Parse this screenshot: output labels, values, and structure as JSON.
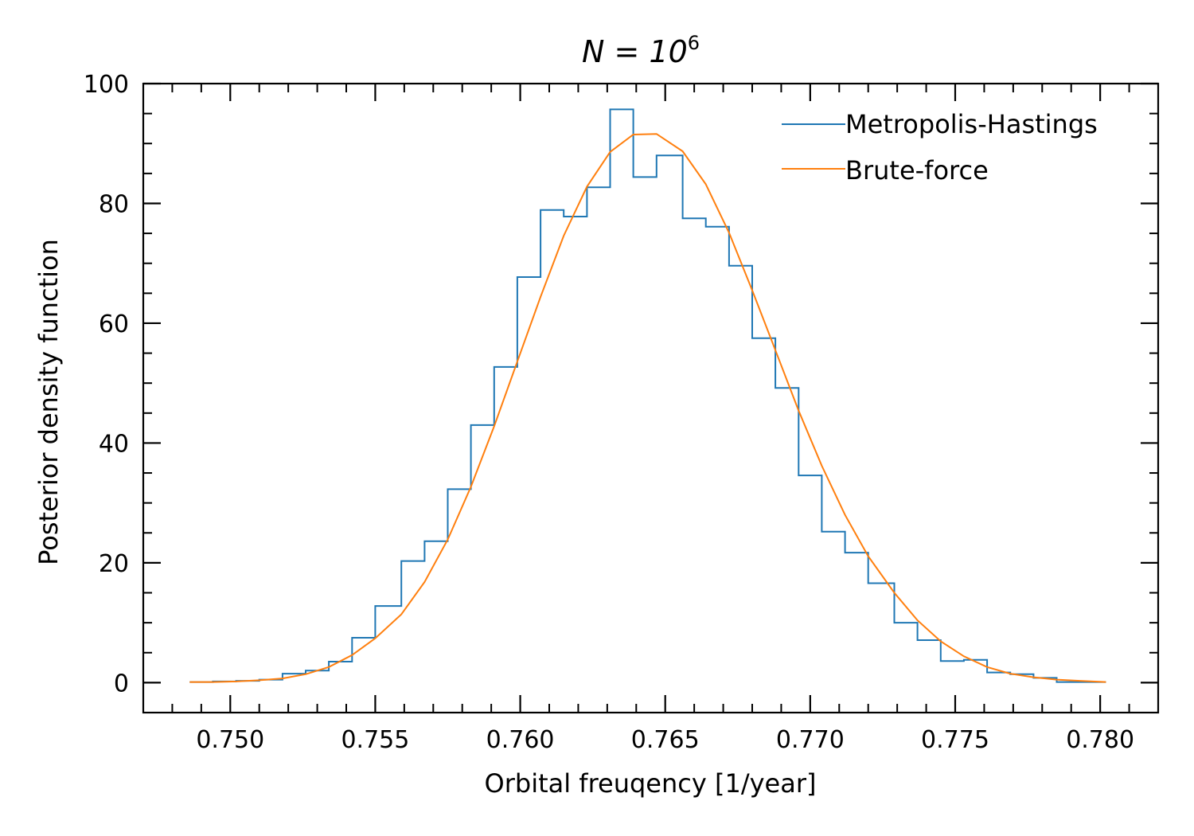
{
  "chart_data": {
    "type": "line",
    "title": "N = 10",
    "title_superscript": "6",
    "xlabel": "Orbital freuqency [1/year]",
    "ylabel": "Posterior density function",
    "xlim": [
      0.747,
      0.782
    ],
    "ylim": [
      -5,
      100
    ],
    "xticks": [
      0.75,
      0.755,
      0.76,
      0.765,
      0.77,
      0.775,
      0.78
    ],
    "xtick_labels": [
      "0.750",
      "0.755",
      "0.760",
      "0.765",
      "0.770",
      "0.775",
      "0.780"
    ],
    "yticks": [
      0,
      20,
      40,
      60,
      80,
      100
    ],
    "ytick_labels": [
      "0",
      "20",
      "40",
      "60",
      "80",
      "100"
    ],
    "grid": false,
    "legend_position": "top-right",
    "series": [
      {
        "name": "Metropolis-Hastings",
        "kind": "histogram-step",
        "color": "#1f77b4",
        "bin_edges": [
          0.7486,
          0.7494,
          0.7502,
          0.751,
          0.7518,
          0.7526,
          0.7534,
          0.7542,
          0.755,
          0.7559,
          0.7567,
          0.7575,
          0.7583,
          0.7591,
          0.7599,
          0.7607,
          0.7615,
          0.7623,
          0.7631,
          0.7639,
          0.7647,
          0.7656,
          0.7664,
          0.7672,
          0.768,
          0.7688,
          0.7696,
          0.7704,
          0.7712,
          0.772,
          0.7729,
          0.7737,
          0.7745,
          0.7753,
          0.7761,
          0.7769,
          0.7777,
          0.7785,
          0.7793,
          0.7802
        ],
        "values": [
          0.1,
          0.2,
          0.3,
          0.5,
          1.5,
          2.0,
          3.5,
          7.5,
          12.8,
          20.3,
          23.6,
          32.3,
          43.0,
          52.7,
          67.7,
          78.9,
          77.8,
          82.7,
          95.7,
          84.4,
          88.0,
          77.5,
          76.1,
          69.6,
          57.5,
          49.2,
          34.6,
          25.2,
          21.7,
          16.6,
          10.0,
          7.1,
          3.6,
          3.8,
          1.7,
          1.4,
          0.8,
          0.1,
          0.1
        ]
      },
      {
        "name": "Brute-force",
        "kind": "line",
        "color": "#ff7f0e",
        "x": [
          0.7486,
          0.7494,
          0.7502,
          0.751,
          0.7518,
          0.7526,
          0.7534,
          0.7542,
          0.755,
          0.7559,
          0.7567,
          0.7575,
          0.7583,
          0.7591,
          0.7599,
          0.7607,
          0.7615,
          0.7623,
          0.7631,
          0.7639,
          0.7647,
          0.7656,
          0.7664,
          0.7672,
          0.768,
          0.7688,
          0.7696,
          0.7704,
          0.7712,
          0.772,
          0.7729,
          0.7737,
          0.7745,
          0.7753,
          0.7761,
          0.7769,
          0.7777,
          0.7785,
          0.7793,
          0.7802
        ],
        "y": [
          0.1,
          0.1,
          0.2,
          0.4,
          0.7,
          1.4,
          2.6,
          4.6,
          7.4,
          11.4,
          16.8,
          23.9,
          32.7,
          42.8,
          53.6,
          64.4,
          74.6,
          82.8,
          88.6,
          91.5,
          91.6,
          88.7,
          83.2,
          75.1,
          65.5,
          55.5,
          45.4,
          36.2,
          28.0,
          21.1,
          15.0,
          10.4,
          6.9,
          4.4,
          2.6,
          1.5,
          0.9,
          0.5,
          0.3,
          0.1
        ]
      }
    ]
  }
}
